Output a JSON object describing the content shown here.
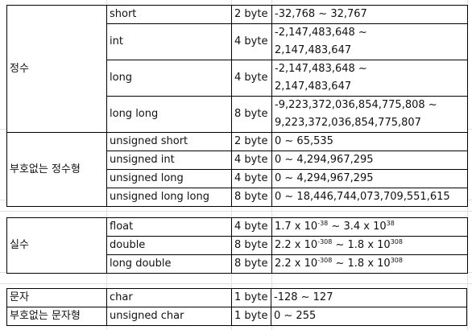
{
  "blocks": [
    {
      "groups": [
        {
          "category": "정수",
          "rows": [
            {
              "type": "short",
              "size": "2 byte",
              "range_lines": [
                "-32,768 ~ 32,767"
              ]
            },
            {
              "type": "int",
              "size": "4 byte",
              "range_lines": [
                "-2,147,483,648 ~",
                "2,147,483,647"
              ]
            },
            {
              "type": "long",
              "size": "4 byte",
              "range_lines": [
                "-2,147,483,648 ~",
                "2,147,483,647"
              ]
            },
            {
              "type": "long long",
              "size": "8 byte",
              "range_lines": [
                "-9,223,372,036,854,775,808 ~",
                "9,223,372,036,854,775,807"
              ]
            }
          ]
        },
        {
          "category": "부호없는 정수형",
          "rows": [
            {
              "type": "unsigned short",
              "size": "2 byte",
              "range_lines": [
                "0 ~ 65,535"
              ]
            },
            {
              "type": "unsigned int",
              "size": "4 byte",
              "range_lines": [
                "0 ~ 4,294,967,295"
              ]
            },
            {
              "type": "unsigned long",
              "size": "4 byte",
              "range_lines": [
                "0 ~ 4,294,967,295"
              ]
            },
            {
              "type": "unsigned long long",
              "size": "8 byte",
              "range_lines": [
                "0 ~ 18,446,744,073,709,551,615"
              ]
            }
          ]
        }
      ]
    },
    {
      "groups": [
        {
          "category": "실수",
          "rows": [
            {
              "type": "float",
              "size": "4 byte",
              "range_sci": {
                "m1": "1.7 x 10",
                "e1": "-38",
                "sep": " ~ ",
                "m2": "3.4 x 10",
                "e2": "38"
              }
            },
            {
              "type": "double",
              "size": "8 byte",
              "range_sci": {
                "m1": "2.2 x 10",
                "e1": "-308",
                "sep": " ~ ",
                "m2": "1.8 x 10",
                "e2": "308"
              }
            },
            {
              "type": "long double",
              "size": "8 byte",
              "range_sci": {
                "m1": "2.2 x 10",
                "e1": "-308",
                "sep": " ~ ",
                "m2": "1.8 x 10",
                "e2": "308"
              }
            }
          ]
        }
      ]
    },
    {
      "groups": [
        {
          "category": "문자",
          "rows": [
            {
              "type": "char",
              "size": "1 byte",
              "range_lines": [
                "-128 ~ 127"
              ]
            }
          ]
        },
        {
          "category": "부호없는 문자형",
          "rows": [
            {
              "type": "unsigned char",
              "size": "1 byte",
              "range_lines": [
                "0 ~ 255"
              ]
            }
          ]
        }
      ]
    }
  ]
}
